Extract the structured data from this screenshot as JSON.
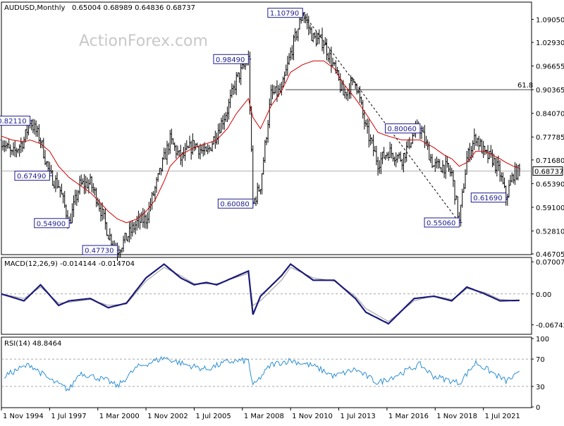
{
  "header": {
    "symbol": "AUDUSD,Monthly",
    "ohlc": "0.65004 0.68989 0.64836 0.68737",
    "watermark": "ActionForex.com"
  },
  "price_panel": {
    "current_price": "0.68737",
    "fib_label": "61.8",
    "fib_level": 0.9036,
    "current_level": 0.68737,
    "peak_labels": [
      {
        "text": "0.82110",
        "value": 0.8211,
        "date": "1996-06"
      },
      {
        "text": "0.67490",
        "value": 0.6749,
        "date": "1997-07"
      },
      {
        "text": "0.54900",
        "value": 0.549,
        "date": "1998-08"
      },
      {
        "text": "0.47730",
        "value": 0.4773,
        "date": "2001-04"
      },
      {
        "text": "0.98490",
        "value": 0.9849,
        "date": "2008-07"
      },
      {
        "text": "0.60080",
        "value": 0.6008,
        "date": "2008-10"
      },
      {
        "text": "1.10790",
        "value": 1.1079,
        "date": "2011-07"
      },
      {
        "text": "0.80060",
        "value": 0.8006,
        "date": "2018-01"
      },
      {
        "text": "0.55060",
        "value": 0.5506,
        "date": "2020-03"
      },
      {
        "text": "0.61690",
        "value": 0.6169,
        "date": "2022-10"
      }
    ]
  },
  "macd_panel": {
    "title": "MACD(12,26,9) -0.014144 -0.014704",
    "ticks": [
      "0.070071",
      "0.00",
      "-0.067423"
    ]
  },
  "rsi_panel": {
    "title": "RSI(14) 48.8464",
    "ticks": [
      "100",
      "70",
      "30",
      "0"
    ]
  },
  "x_axis": {
    "labels": [
      "1 Nov 1994",
      "1 Jul 1997",
      "1 Mar 2000",
      "1 Nov 2002",
      "1 Jul 2005",
      "1 Mar 2008",
      "1 Nov 2010",
      "1 Jul 2013",
      "1 Mar 2016",
      "1 Nov 2018",
      "1 Jul 2021"
    ]
  },
  "chart_data": [
    {
      "type": "line",
      "title": "AUDUSD,Monthly",
      "ylim": [
        0.4671,
        1.1307
      ],
      "y_ticks": [
        "1.09050",
        "1.02930",
        "0.96655",
        "0.90365",
        "0.84070",
        "0.77785",
        "0.71680",
        "0.65390",
        "0.59100",
        "0.52810",
        "0.46705"
      ],
      "x": [
        "1994-11",
        "1995-06",
        "1996-02",
        "1996-06",
        "1997-01",
        "1997-07",
        "1998-01",
        "1998-08",
        "1999-03",
        "1999-10",
        "2000-03",
        "2000-10",
        "2001-04",
        "2001-10",
        "2002-05",
        "2002-11",
        "2003-05",
        "2003-11",
        "2004-03",
        "2004-10",
        "2005-07",
        "2006-03",
        "2006-10",
        "2007-05",
        "2007-11",
        "2008-07",
        "2008-10",
        "2009-03",
        "2009-10",
        "2010-05",
        "2010-11",
        "2011-07",
        "2012-02",
        "2012-09",
        "2013-04",
        "2013-10",
        "2014-06",
        "2015-01",
        "2015-09",
        "2016-04",
        "2017-01",
        "2017-09",
        "2018-01",
        "2018-10",
        "2019-05",
        "2019-10",
        "2020-03",
        "2020-08",
        "2021-02",
        "2021-08",
        "2022-01",
        "2022-06",
        "2022-10",
        "2023-03",
        "2023-07"
      ],
      "series": [
        {
          "name": "",
          "values": [
            0.77,
            0.73,
            0.77,
            0.8211,
            0.77,
            0.6749,
            0.65,
            0.549,
            0.65,
            0.655,
            0.61,
            0.52,
            0.4773,
            0.51,
            0.55,
            0.56,
            0.64,
            0.72,
            0.77,
            0.72,
            0.76,
            0.73,
            0.79,
            0.85,
            0.93,
            0.9849,
            0.6008,
            0.65,
            0.89,
            0.9,
            1.0,
            1.1079,
            1.04,
            1.03,
            0.96,
            0.89,
            0.93,
            0.8,
            0.71,
            0.74,
            0.72,
            0.79,
            0.8006,
            0.7,
            0.7,
            0.68,
            0.5506,
            0.72,
            0.78,
            0.73,
            0.72,
            0.68,
            0.6169,
            0.68,
            0.68737
          ]
        },
        {
          "name": "",
          "values": [
            0.78,
            0.77,
            0.765,
            0.77,
            0.76,
            0.74,
            0.7,
            0.67,
            0.65,
            0.63,
            0.61,
            0.58,
            0.56,
            0.55,
            0.56,
            0.58,
            0.61,
            0.66,
            0.7,
            0.73,
            0.75,
            0.76,
            0.77,
            0.8,
            0.84,
            0.88,
            0.83,
            0.8,
            0.86,
            0.9,
            0.95,
            0.97,
            0.98,
            0.98,
            0.96,
            0.92,
            0.88,
            0.84,
            0.79,
            0.78,
            0.77,
            0.77,
            0.77,
            0.75,
            0.73,
            0.72,
            0.7,
            0.71,
            0.74,
            0.74,
            0.73,
            0.72,
            0.71,
            0.7,
            0.695
          ]
        }
      ]
    },
    {
      "type": "line",
      "title": "MACD(12,26,9) -0.014144 -0.014704",
      "ylim": [
        -0.085,
        0.075
      ],
      "x": [
        "1994-11",
        "1996-02",
        "1997-01",
        "1998-01",
        "1998-08",
        "1999-10",
        "2000-10",
        "2001-10",
        "2002-11",
        "2003-11",
        "2004-10",
        "2005-07",
        "2006-03",
        "2006-10",
        "2008-07",
        "2008-10",
        "2009-03",
        "2010-05",
        "2010-11",
        "2012-02",
        "2013-04",
        "2014-06",
        "2015-01",
        "2016-04",
        "2017-09",
        "2018-10",
        "2019-10",
        "2020-03",
        "2020-08",
        "2021-08",
        "2022-06",
        "2023-07"
      ],
      "series": [
        {
          "name": "",
          "values": [
            0.0,
            -0.015,
            0.02,
            -0.025,
            -0.015,
            -0.01,
            -0.03,
            -0.02,
            0.035,
            0.065,
            0.035,
            0.02,
            0.025,
            0.02,
            0.05,
            -0.045,
            -0.005,
            0.04,
            0.065,
            0.03,
            0.03,
            -0.01,
            -0.04,
            -0.065,
            -0.01,
            -0.005,
            -0.015,
            0.0,
            0.015,
            0.0,
            -0.015,
            -0.014144
          ]
        },
        {
          "name": "",
          "values": [
            0.0,
            -0.01,
            0.015,
            -0.02,
            -0.018,
            -0.012,
            -0.025,
            -0.022,
            0.028,
            0.058,
            0.04,
            0.022,
            0.022,
            0.022,
            0.045,
            -0.025,
            -0.015,
            0.03,
            0.058,
            0.035,
            0.028,
            -0.005,
            -0.032,
            -0.06,
            -0.015,
            -0.004,
            -0.012,
            -0.002,
            0.012,
            0.003,
            -0.012,
            -0.014704
          ]
        }
      ]
    },
    {
      "type": "line",
      "title": "RSI(14) 48.8464",
      "ylim": [
        0,
        100
      ],
      "x": [
        "1995-01",
        "1995-10",
        "1996-06",
        "1997-07",
        "1998-08",
        "1999-03",
        "2000-10",
        "2001-04",
        "2002-05",
        "2003-11",
        "2005-01",
        "2006-03",
        "2007-05",
        "2008-07",
        "2008-10",
        "2009-10",
        "2010-11",
        "2012-02",
        "2013-04",
        "2014-06",
        "2015-09",
        "2017-01",
        "2018-01",
        "2018-10",
        "2020-03",
        "2021-02",
        "2022-01",
        "2022-10",
        "2023-07"
      ],
      "series": [
        {
          "name": "",
          "values": [
            45,
            55,
            62,
            40,
            25,
            50,
            38,
            30,
            58,
            72,
            62,
            55,
            66,
            68,
            30,
            62,
            68,
            60,
            45,
            55,
            35,
            50,
            62,
            45,
            35,
            65,
            50,
            38,
            48.8464
          ]
        }
      ]
    }
  ]
}
